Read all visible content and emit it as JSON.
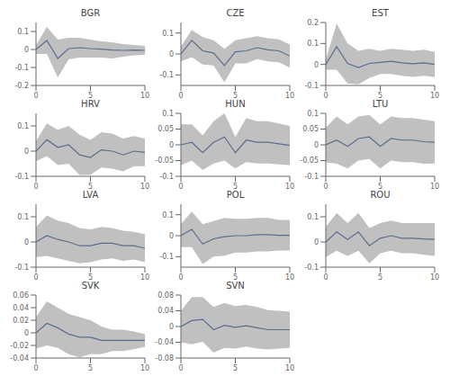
{
  "chart_data": [
    {
      "type": "line",
      "title": "BGR",
      "x": [
        0,
        1,
        2,
        3,
        4,
        5,
        6,
        7,
        8,
        9,
        10
      ],
      "xlim": [
        0,
        10
      ],
      "xticks": [
        0,
        5,
        10
      ],
      "ylim": [
        -0.2,
        0.15
      ],
      "yticks": [
        -0.2,
        -0.1,
        0,
        0.1
      ],
      "series": [
        {
          "type": "area",
          "color": "#c0c0c0",
          "lower": [
            -0.025,
            -0.025,
            -0.155,
            -0.055,
            -0.045,
            -0.045,
            -0.045,
            -0.05,
            -0.04,
            -0.032,
            -0.03
          ],
          "upper": [
            0.025,
            0.125,
            0.055,
            0.065,
            0.065,
            0.055,
            0.045,
            0.04,
            0.03,
            0.025,
            0.02
          ]
        },
        {
          "type": "line",
          "color": "#5a6e8c",
          "values": [
            0.0,
            0.05,
            -0.05,
            0.005,
            0.01,
            0.005,
            0.002,
            -0.003,
            -0.005,
            -0.003,
            -0.005
          ]
        }
      ]
    },
    {
      "type": "line",
      "title": "CZE",
      "x": [
        0,
        1,
        2,
        3,
        4,
        5,
        6,
        7,
        8,
        9,
        10
      ],
      "xlim": [
        0,
        10
      ],
      "xticks": [
        0,
        5,
        10
      ],
      "ylim": [
        -0.15,
        0.15
      ],
      "yticks": [
        -0.1,
        0,
        0.1
      ],
      "series": [
        {
          "type": "area",
          "color": "#c0c0c0",
          "lower": [
            -0.035,
            -0.015,
            -0.05,
            -0.055,
            -0.135,
            -0.045,
            -0.045,
            -0.025,
            -0.035,
            -0.04,
            -0.065
          ],
          "upper": [
            0.035,
            0.115,
            0.08,
            0.065,
            0.025,
            0.065,
            0.075,
            0.085,
            0.075,
            0.07,
            0.045
          ]
        },
        {
          "type": "line",
          "color": "#5a6e8c",
          "values": [
            0.0,
            0.065,
            0.015,
            0.005,
            -0.055,
            0.01,
            0.015,
            0.03,
            0.02,
            0.015,
            -0.01
          ]
        }
      ]
    },
    {
      "type": "line",
      "title": "EST",
      "x": [
        0,
        1,
        2,
        3,
        4,
        5,
        6,
        7,
        8,
        9,
        10
      ],
      "xlim": [
        0,
        10
      ],
      "xticks": [
        0,
        5,
        10
      ],
      "ylim": [
        -0.1,
        0.2
      ],
      "yticks": [
        -0.1,
        0,
        0.1,
        0.2
      ],
      "series": [
        {
          "type": "area",
          "color": "#c0c0c0",
          "lower": [
            -0.025,
            -0.025,
            -0.09,
            -0.095,
            -0.065,
            -0.045,
            -0.045,
            -0.054,
            -0.059,
            -0.054,
            -0.06
          ],
          "upper": [
            0.025,
            0.195,
            0.1,
            0.065,
            0.075,
            0.065,
            0.075,
            0.07,
            0.065,
            0.07,
            0.06
          ]
        },
        {
          "type": "line",
          "color": "#5a6e8c",
          "values": [
            0.0,
            0.085,
            0.005,
            -0.015,
            0.005,
            0.01,
            0.015,
            0.008,
            0.003,
            0.008,
            0.0
          ]
        }
      ]
    },
    {
      "type": "line",
      "title": "HRV",
      "x": [
        0,
        1,
        2,
        3,
        4,
        5,
        6,
        7,
        8,
        9,
        10
      ],
      "xlim": [
        0,
        10
      ],
      "xticks": [
        0,
        5,
        10
      ],
      "ylim": [
        -0.1,
        0.15
      ],
      "yticks": [
        -0.1,
        0,
        0.1
      ],
      "series": [
        {
          "type": "area",
          "color": "#c0c0c0",
          "lower": [
            -0.04,
            -0.02,
            -0.055,
            -0.05,
            -0.095,
            -0.095,
            -0.065,
            -0.07,
            -0.08,
            -0.06,
            -0.06
          ],
          "upper": [
            0.04,
            0.11,
            0.085,
            0.1,
            0.065,
            0.045,
            0.075,
            0.07,
            0.05,
            0.06,
            0.05
          ]
        },
        {
          "type": "line",
          "color": "#5a6e8c",
          "values": [
            0.0,
            0.045,
            0.015,
            0.025,
            -0.015,
            -0.025,
            0.005,
            0.0,
            -0.015,
            0.0,
            -0.005
          ]
        }
      ]
    },
    {
      "type": "line",
      "title": "HUN",
      "x": [
        0,
        1,
        2,
        3,
        4,
        5,
        6,
        7,
        8,
        9,
        10
      ],
      "xlim": [
        0,
        10
      ],
      "xticks": [
        0,
        5,
        10
      ],
      "ylim": [
        -0.1,
        0.1
      ],
      "yticks": [
        -0.1,
        -0.05,
        0,
        0.05,
        0.1
      ],
      "series": [
        {
          "type": "area",
          "color": "#c0c0c0",
          "lower": [
            -0.065,
            -0.05,
            -0.08,
            -0.059,
            -0.05,
            -0.075,
            -0.055,
            -0.059,
            -0.059,
            -0.062,
            -0.064
          ],
          "upper": [
            0.065,
            0.065,
            0.03,
            0.075,
            0.1,
            0.025,
            0.085,
            0.075,
            0.075,
            0.068,
            0.06
          ]
        },
        {
          "type": "line",
          "color": "#5a6e8c",
          "values": [
            0.0,
            0.008,
            -0.025,
            0.008,
            0.025,
            -0.025,
            0.015,
            0.008,
            0.008,
            0.003,
            -0.002
          ]
        }
      ]
    },
    {
      "type": "line",
      "title": "LTU",
      "x": [
        0,
        1,
        2,
        3,
        4,
        5,
        6,
        7,
        8,
        9,
        10
      ],
      "xlim": [
        0,
        10
      ],
      "xticks": [
        0,
        5,
        10
      ],
      "ylim": [
        -0.1,
        0.1
      ],
      "yticks": [
        -0.1,
        -0.05,
        0,
        0.05,
        0.1
      ],
      "series": [
        {
          "type": "area",
          "color": "#c0c0c0",
          "lower": [
            -0.055,
            -0.06,
            -0.075,
            -0.05,
            -0.045,
            -0.075,
            -0.05,
            -0.055,
            -0.055,
            -0.06,
            -0.059
          ],
          "upper": [
            0.055,
            0.09,
            0.065,
            0.09,
            0.095,
            0.065,
            0.09,
            0.085,
            0.085,
            0.08,
            0.075
          ]
        },
        {
          "type": "line",
          "color": "#5a6e8c",
          "values": [
            0.0,
            0.015,
            -0.005,
            0.02,
            0.025,
            -0.005,
            0.02,
            0.015,
            0.015,
            0.01,
            0.008
          ]
        }
      ]
    },
    {
      "type": "line",
      "title": "LVA",
      "x": [
        0,
        1,
        2,
        3,
        4,
        5,
        6,
        7,
        8,
        9,
        10
      ],
      "xlim": [
        0,
        10
      ],
      "xticks": [
        0,
        5,
        10
      ],
      "ylim": [
        -0.1,
        0.15
      ],
      "yticks": [
        -0.1,
        0,
        0.1
      ],
      "series": [
        {
          "type": "area",
          "color": "#c0c0c0",
          "lower": [
            -0.06,
            -0.055,
            -0.065,
            -0.075,
            -0.085,
            -0.08,
            -0.07,
            -0.065,
            -0.075,
            -0.07,
            -0.08
          ],
          "upper": [
            0.06,
            0.105,
            0.085,
            0.075,
            0.055,
            0.05,
            0.06,
            0.055,
            0.045,
            0.04,
            0.03
          ]
        },
        {
          "type": "line",
          "color": "#5a6e8c",
          "values": [
            0.0,
            0.025,
            0.01,
            0.0,
            -0.015,
            -0.015,
            -0.005,
            -0.005,
            -0.015,
            -0.015,
            -0.025
          ]
        }
      ]
    },
    {
      "type": "line",
      "title": "POL",
      "x": [
        0,
        1,
        2,
        3,
        4,
        5,
        6,
        7,
        8,
        9,
        10
      ],
      "xlim": [
        0,
        10
      ],
      "xticks": [
        0,
        5,
        10
      ],
      "ylim": [
        -0.15,
        0.15
      ],
      "yticks": [
        -0.1,
        0,
        0.1
      ],
      "series": [
        {
          "type": "area",
          "color": "#c0c0c0",
          "lower": [
            -0.055,
            -0.055,
            -0.135,
            -0.1,
            -0.095,
            -0.08,
            -0.08,
            -0.075,
            -0.075,
            -0.071,
            -0.071
          ],
          "upper": [
            0.055,
            0.115,
            0.055,
            0.07,
            0.085,
            0.08,
            0.08,
            0.085,
            0.085,
            0.075,
            0.075
          ]
        },
        {
          "type": "line",
          "color": "#5a6e8c",
          "values": [
            0.0,
            0.03,
            -0.04,
            -0.015,
            -0.005,
            0.0,
            0.0,
            0.005,
            0.005,
            0.002,
            0.002
          ]
        }
      ]
    },
    {
      "type": "line",
      "title": "ROU",
      "x": [
        0,
        1,
        2,
        3,
        4,
        5,
        6,
        7,
        8,
        9,
        10
      ],
      "xlim": [
        0,
        10
      ],
      "xticks": [
        0,
        5,
        10
      ],
      "ylim": [
        -0.1,
        0.15
      ],
      "yticks": [
        -0.1,
        0,
        0.1
      ],
      "series": [
        {
          "type": "area",
          "color": "#c0c0c0",
          "lower": [
            -0.06,
            -0.035,
            -0.055,
            -0.035,
            -0.085,
            -0.045,
            -0.035,
            -0.045,
            -0.045,
            -0.051,
            -0.055
          ],
          "upper": [
            0.06,
            0.115,
            0.075,
            0.115,
            0.055,
            0.075,
            0.085,
            0.075,
            0.075,
            0.075,
            0.075
          ]
        },
        {
          "type": "line",
          "color": "#5a6e8c",
          "values": [
            0.0,
            0.04,
            0.01,
            0.04,
            -0.015,
            0.015,
            0.025,
            0.015,
            0.015,
            0.012,
            0.01
          ]
        }
      ]
    },
    {
      "type": "line",
      "title": "SVK",
      "x": [
        0,
        1,
        2,
        3,
        4,
        5,
        6,
        7,
        8,
        9,
        10
      ],
      "xlim": [
        0,
        10
      ],
      "xticks": [
        0,
        5,
        10
      ],
      "ylim": [
        -0.04,
        0.06
      ],
      "yticks": [
        -0.04,
        -0.02,
        0,
        0.02,
        0.04,
        0.06
      ],
      "series": [
        {
          "type": "area",
          "color": "#c0c0c0",
          "lower": [
            -0.025,
            -0.02,
            -0.024,
            -0.034,
            -0.039,
            -0.034,
            -0.034,
            -0.029,
            -0.029,
            -0.026,
            -0.022
          ],
          "upper": [
            0.025,
            0.05,
            0.04,
            0.03,
            0.025,
            0.02,
            0.01,
            0.005,
            0.005,
            0.002,
            -0.002
          ]
        },
        {
          "type": "line",
          "color": "#5a6e8c",
          "values": [
            0.0,
            0.015,
            0.008,
            -0.002,
            -0.007,
            -0.007,
            -0.012,
            -0.012,
            -0.012,
            -0.012,
            -0.012
          ]
        }
      ]
    },
    {
      "type": "line",
      "title": "SVN",
      "x": [
        0,
        1,
        2,
        3,
        4,
        5,
        6,
        7,
        8,
        9,
        10
      ],
      "xlim": [
        0,
        10
      ],
      "xticks": [
        0,
        5,
        10
      ],
      "ylim": [
        -0.08,
        0.08
      ],
      "yticks": [
        -0.08,
        -0.04,
        0,
        0.04,
        0.08
      ],
      "series": [
        {
          "type": "area",
          "color": "#c0c0c0",
          "lower": [
            -0.04,
            -0.045,
            -0.039,
            -0.066,
            -0.054,
            -0.056,
            -0.051,
            -0.056,
            -0.058,
            -0.056,
            -0.054
          ],
          "upper": [
            0.04,
            0.075,
            0.075,
            0.05,
            0.06,
            0.052,
            0.055,
            0.05,
            0.042,
            0.04,
            0.038
          ]
        },
        {
          "type": "line",
          "color": "#5a6e8c",
          "values": [
            0.0,
            0.015,
            0.018,
            -0.008,
            0.003,
            -0.002,
            0.002,
            -0.003,
            -0.008,
            -0.008,
            -0.008
          ]
        }
      ]
    }
  ]
}
